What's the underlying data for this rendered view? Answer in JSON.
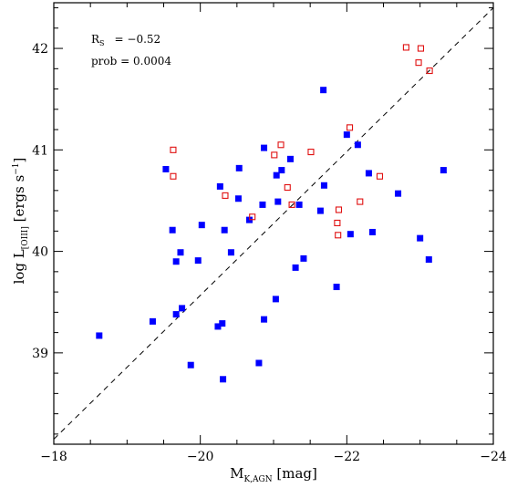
{
  "chart_data": {
    "type": "scatter",
    "x": {
      "min": -18,
      "max": -24,
      "ticks": [
        -18,
        -20,
        -22,
        -24
      ],
      "tick_labels": [
        "−18",
        "−20",
        "−22",
        "−24"
      ],
      "label_main": "M",
      "label_sub": "K,AGN",
      "label_unit": " [mag]"
    },
    "y": {
      "min": 38.1,
      "max": 42.45,
      "ticks": [
        39,
        40,
        41,
        42
      ],
      "tick_labels": [
        "39",
        "40",
        "41",
        "42"
      ],
      "label_main": "log L",
      "label_sub": "[OIII]",
      "label_unit": " [ergs s",
      "label_sup": "−1",
      "label_close": "]"
    },
    "annotations": {
      "rs_symbol": "R",
      "rs_sub": "S",
      "rs_value": "= −0.52",
      "prob": "prob = 0.0004"
    },
    "fit_line": {
      "x": [
        -18,
        -24
      ],
      "y": [
        38.15,
        42.4
      ],
      "style": "dashed"
    },
    "series": [
      {
        "marker": "filled-square",
        "color": "#0000ff",
        "points": [
          [
            -18.62,
            39.17
          ],
          [
            -19.35,
            39.31
          ],
          [
            -19.53,
            40.81
          ],
          [
            -19.62,
            40.21
          ],
          [
            -19.67,
            39.9
          ],
          [
            -19.67,
            39.38
          ],
          [
            -19.73,
            39.99
          ],
          [
            -19.75,
            39.44
          ],
          [
            -19.87,
            38.88
          ],
          [
            -19.97,
            39.91
          ],
          [
            -20.02,
            40.26
          ],
          [
            -20.24,
            39.26
          ],
          [
            -20.27,
            40.64
          ],
          [
            -20.3,
            39.29
          ],
          [
            -20.31,
            38.74
          ],
          [
            -20.33,
            40.21
          ],
          [
            -20.42,
            39.99
          ],
          [
            -20.52,
            40.52
          ],
          [
            -20.53,
            40.82
          ],
          [
            -20.67,
            40.31
          ],
          [
            -20.8,
            38.9
          ],
          [
            -20.85,
            40.46
          ],
          [
            -20.87,
            39.33
          ],
          [
            -20.87,
            41.02
          ],
          [
            -21.03,
            39.53
          ],
          [
            -21.04,
            40.75
          ],
          [
            -21.06,
            40.49
          ],
          [
            -21.11,
            40.8
          ],
          [
            -21.23,
            40.91
          ],
          [
            -21.3,
            39.84
          ],
          [
            -21.35,
            40.46
          ],
          [
            -21.41,
            39.93
          ],
          [
            -21.64,
            40.4
          ],
          [
            -21.69,
            40.65
          ],
          [
            -21.68,
            41.59
          ],
          [
            -21.86,
            39.65
          ],
          [
            -22.0,
            41.15
          ],
          [
            -22.05,
            40.17
          ],
          [
            -22.15,
            41.05
          ],
          [
            -22.3,
            40.77
          ],
          [
            -22.35,
            40.19
          ],
          [
            -22.7,
            40.57
          ],
          [
            -23.0,
            40.13
          ],
          [
            -23.12,
            39.92
          ],
          [
            -23.32,
            40.8
          ]
        ]
      },
      {
        "marker": "open-square",
        "color": "#e01010",
        "points": [
          [
            -19.63,
            41.0
          ],
          [
            -19.63,
            40.74
          ],
          [
            -20.34,
            40.55
          ],
          [
            -20.71,
            40.34
          ],
          [
            -21.01,
            40.95
          ],
          [
            -21.1,
            41.05
          ],
          [
            -21.19,
            40.63
          ],
          [
            -21.25,
            40.46
          ],
          [
            -21.51,
            40.98
          ],
          [
            -21.87,
            40.28
          ],
          [
            -21.89,
            40.41
          ],
          [
            -21.88,
            40.16
          ],
          [
            -22.04,
            41.22
          ],
          [
            -22.18,
            40.49
          ],
          [
            -22.45,
            40.74
          ],
          [
            -22.81,
            42.01
          ],
          [
            -22.98,
            41.86
          ],
          [
            -23.01,
            42.0
          ],
          [
            -23.13,
            41.78
          ]
        ]
      }
    ]
  }
}
